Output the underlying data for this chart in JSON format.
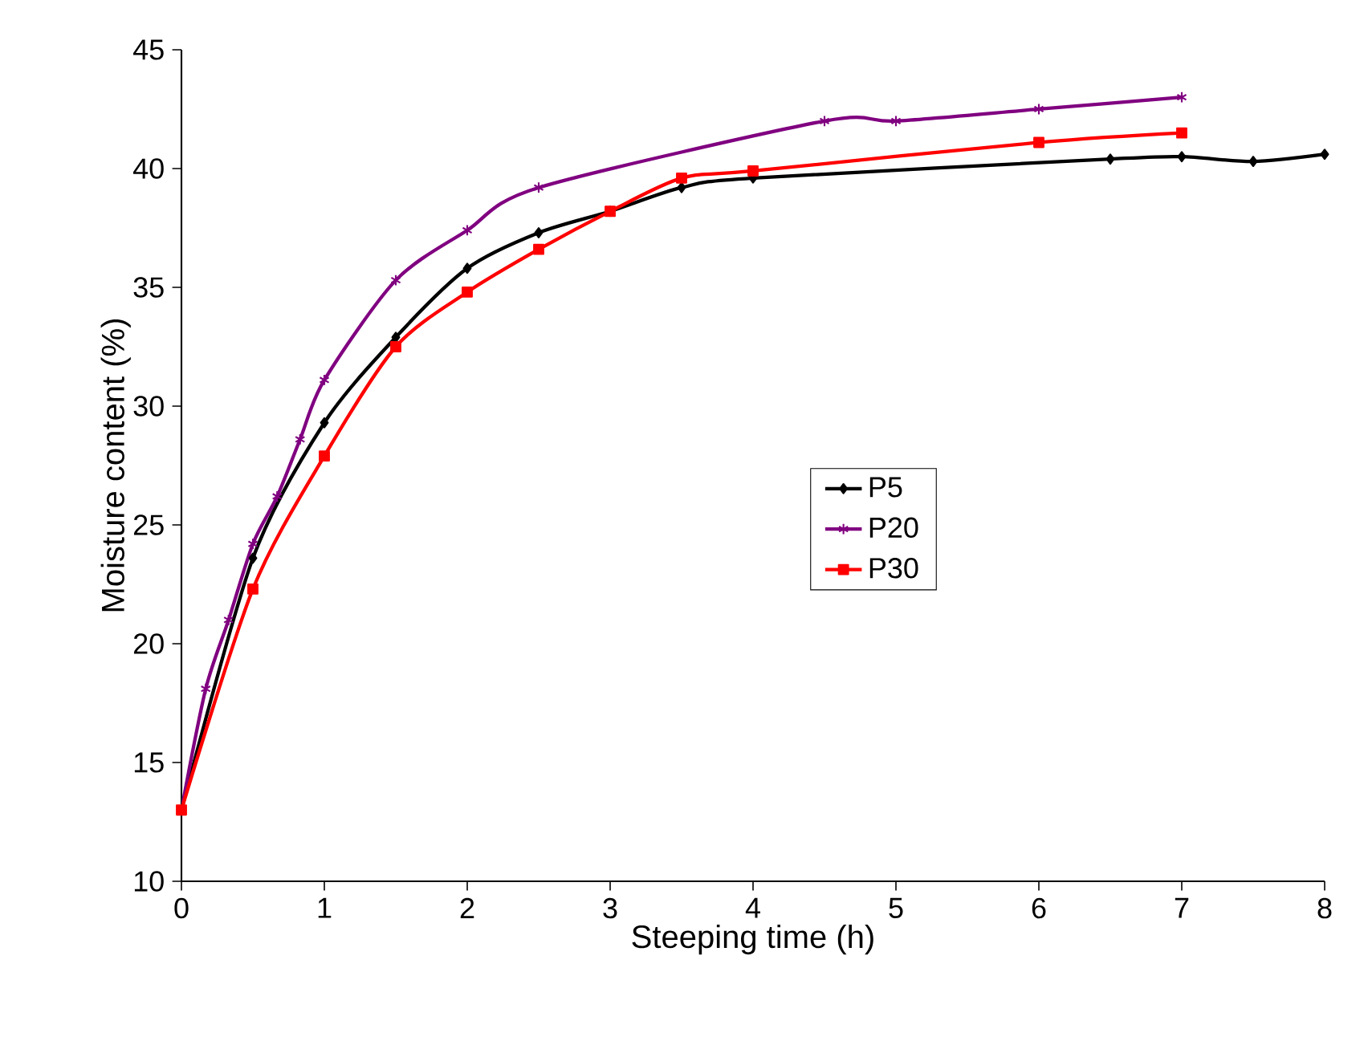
{
  "chart_data": {
    "type": "line",
    "xlabel": "Steeping time  (h)",
    "ylabel": "Moisture content (%)",
    "xlim": [
      0,
      8
    ],
    "ylim": [
      10,
      45
    ],
    "xticks": [
      0,
      1,
      2,
      3,
      4,
      5,
      6,
      7,
      8
    ],
    "yticks": [
      10,
      15,
      20,
      25,
      30,
      35,
      40,
      45
    ],
    "grid": false,
    "legend": "right",
    "series": [
      {
        "name": "P5",
        "color": "#000000",
        "marker": "diamond",
        "x": [
          0,
          0.5,
          1,
          1.5,
          2,
          2.5,
          3,
          3.5,
          4,
          6.5,
          7,
          7.5,
          8
        ],
        "values": [
          13,
          23.6,
          29.3,
          32.9,
          35.8,
          37.3,
          38.2,
          39.2,
          39.6,
          40.4,
          40.5,
          40.3,
          40.6
        ]
      },
      {
        "name": "P20",
        "color": "#800080",
        "marker": "cross",
        "x": [
          0,
          0.17,
          0.33,
          0.5,
          0.67,
          0.83,
          1,
          1.5,
          2,
          2.5,
          4.5,
          5,
          6,
          7
        ],
        "values": [
          13,
          18.1,
          21,
          24.2,
          26.2,
          28.6,
          31.1,
          35.3,
          37.4,
          39.2,
          42.0,
          42.0,
          42.5,
          43.0
        ]
      },
      {
        "name": "P30",
        "color": "#ff0000",
        "marker": "square",
        "x": [
          0,
          0.5,
          1,
          1.5,
          2,
          2.5,
          3,
          3.5,
          4,
          6,
          7
        ],
        "values": [
          13,
          22.3,
          27.9,
          32.5,
          34.8,
          36.6,
          38.2,
          39.6,
          39.9,
          41.1,
          41.5
        ]
      }
    ]
  }
}
